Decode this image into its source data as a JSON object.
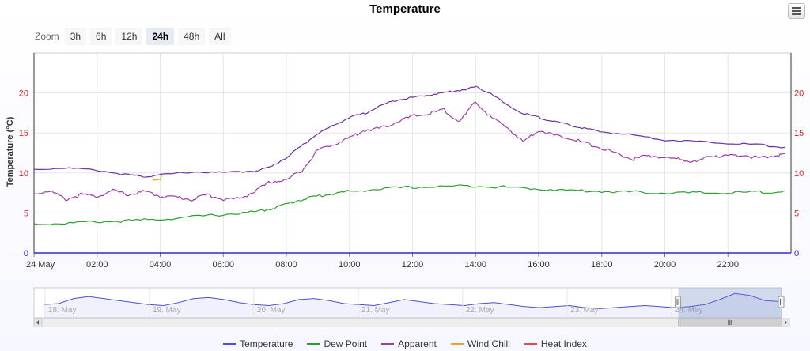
{
  "title": "Temperature",
  "menu_icon": "hamburger-menu-icon",
  "zoom": {
    "label": "Zoom",
    "buttons": [
      "3h",
      "6h",
      "12h",
      "24h",
      "48h",
      "All"
    ],
    "selected": "24h"
  },
  "chart_data": {
    "type": "line",
    "title": "Temperature",
    "ylabel": "Temperature (°C)",
    "ylim": [
      0,
      25
    ],
    "y_ticks": [
      "0",
      "5",
      "10",
      "15",
      "20"
    ],
    "x_unit": "hours",
    "x_range": [
      0,
      24
    ],
    "x_ticks": [
      {
        "x": 0,
        "label": "24 May"
      },
      {
        "x": 2,
        "label": "02:00"
      },
      {
        "x": 4,
        "label": "04:00"
      },
      {
        "x": 6,
        "label": "06:00"
      },
      {
        "x": 8,
        "label": "08:00"
      },
      {
        "x": 10,
        "label": "10:00"
      },
      {
        "x": 12,
        "label": "12:00"
      },
      {
        "x": 14,
        "label": "14:00"
      },
      {
        "x": 16,
        "label": "16:00"
      },
      {
        "x": 18,
        "label": "18:00"
      },
      {
        "x": 20,
        "label": "20:00"
      },
      {
        "x": 22,
        "label": "22:00"
      }
    ],
    "grid": true,
    "legend_position": "bottom-center",
    "series": [
      {
        "name": "Temperature",
        "color": "#7030a0",
        "points": [
          [
            0,
            10.5
          ],
          [
            1,
            10.7
          ],
          [
            2,
            10.4
          ],
          [
            3,
            9.8
          ],
          [
            3.5,
            9.6
          ],
          [
            4,
            9.8
          ],
          [
            5,
            10.2
          ],
          [
            6,
            10.1
          ],
          [
            7,
            10.3
          ],
          [
            7.5,
            10.8
          ],
          [
            8,
            12.0
          ],
          [
            8.5,
            13.5
          ],
          [
            9,
            15.0
          ],
          [
            9.5,
            16.0
          ],
          [
            10,
            17.0
          ],
          [
            10.5,
            17.5
          ],
          [
            11,
            18.5
          ],
          [
            11.5,
            19.2
          ],
          [
            12,
            19.5
          ],
          [
            12.5,
            19.8
          ],
          [
            13,
            20.1
          ],
          [
            13.5,
            20.4
          ],
          [
            14,
            20.8
          ],
          [
            14.5,
            20.0
          ],
          [
            15,
            18.5
          ],
          [
            15.5,
            17.5
          ],
          [
            16,
            17.0
          ],
          [
            16.5,
            16.5
          ],
          [
            17,
            16.0
          ],
          [
            17.5,
            15.6
          ],
          [
            18,
            15.2
          ],
          [
            19,
            14.8
          ],
          [
            20,
            14.2
          ],
          [
            21,
            14.0
          ],
          [
            22,
            13.8
          ],
          [
            23,
            13.6
          ],
          [
            23.8,
            13.2
          ]
        ]
      },
      {
        "name": "Dew Point",
        "color": "#2ca02c",
        "points": [
          [
            0,
            3.7
          ],
          [
            1,
            3.8
          ],
          [
            2,
            4.0
          ],
          [
            3,
            4.1
          ],
          [
            4,
            4.3
          ],
          [
            5,
            4.6
          ],
          [
            6,
            4.9
          ],
          [
            7,
            5.2
          ],
          [
            7.5,
            5.6
          ],
          [
            8,
            6.2
          ],
          [
            8.5,
            6.8
          ],
          [
            9,
            7.2
          ],
          [
            9.5,
            7.5
          ],
          [
            10,
            7.8
          ],
          [
            11,
            8.1
          ],
          [
            12,
            8.3
          ],
          [
            13,
            8.4
          ],
          [
            14,
            8.5
          ],
          [
            15,
            8.3
          ],
          [
            16,
            8.1
          ],
          [
            17,
            7.9
          ],
          [
            18,
            7.8
          ],
          [
            19,
            7.7
          ],
          [
            20,
            7.6
          ],
          [
            21,
            7.6
          ],
          [
            22,
            7.6
          ],
          [
            23,
            7.7
          ],
          [
            23.8,
            7.8
          ]
        ]
      },
      {
        "name": "Apparent",
        "color": "#9b3fa8",
        "points": [
          [
            0,
            7.5
          ],
          [
            0.5,
            7.9
          ],
          [
            1,
            6.8
          ],
          [
            1.5,
            7.4
          ],
          [
            2,
            7.2
          ],
          [
            2.5,
            7.9
          ],
          [
            3,
            7.4
          ],
          [
            3.5,
            7.8
          ],
          [
            4,
            7.2
          ],
          [
            4.5,
            7.1
          ],
          [
            5,
            6.8
          ],
          [
            5.5,
            7.4
          ],
          [
            6,
            6.8
          ],
          [
            6.5,
            6.9
          ],
          [
            7,
            7.8
          ],
          [
            7.5,
            9.0
          ],
          [
            8,
            9.2
          ],
          [
            8.5,
            10.5
          ],
          [
            9,
            13.0
          ],
          [
            9.5,
            13.7
          ],
          [
            10,
            14.5
          ],
          [
            10.5,
            15.5
          ],
          [
            11,
            15.7
          ],
          [
            11.5,
            16.5
          ],
          [
            12,
            17.2
          ],
          [
            12.5,
            17.5
          ],
          [
            13,
            18.0
          ],
          [
            13.5,
            16.5
          ],
          [
            14,
            19.0
          ],
          [
            14.5,
            17.0
          ],
          [
            15,
            15.8
          ],
          [
            15.5,
            14.0
          ],
          [
            16,
            15.5
          ],
          [
            16.5,
            14.8
          ],
          [
            17,
            14.5
          ],
          [
            17.5,
            13.8
          ],
          [
            18,
            13.2
          ],
          [
            18.5,
            12.5
          ],
          [
            19,
            11.8
          ],
          [
            19.5,
            12.3
          ],
          [
            20,
            12.0
          ],
          [
            20.5,
            11.8
          ],
          [
            21,
            11.5
          ],
          [
            21.5,
            12.3
          ],
          [
            22,
            12.2
          ],
          [
            22.5,
            12.4
          ],
          [
            23,
            11.9
          ],
          [
            23.5,
            12.3
          ],
          [
            23.8,
            12.4
          ]
        ]
      },
      {
        "name": "Wind Chill",
        "color": "#f0a030",
        "points": [
          [
            3.75,
            9.6
          ],
          [
            3.8,
            9.1
          ],
          [
            4.0,
            9.2
          ],
          [
            4.05,
            9.7
          ]
        ]
      },
      {
        "name": "Heat Index",
        "color": "#e8474c",
        "points": []
      }
    ]
  },
  "navigator": {
    "labels": [
      "18. May",
      "19. May",
      "20. May",
      "21. May",
      "22. May",
      "23. May",
      "24. May"
    ],
    "values": [
      10,
      11,
      16,
      18,
      16,
      14,
      12,
      10,
      9,
      12,
      16,
      17,
      15,
      12,
      10,
      9,
      11,
      15,
      16,
      14,
      11,
      10,
      9,
      12,
      15,
      13,
      11,
      10,
      9,
      11,
      12,
      10,
      8,
      7,
      8,
      9,
      7,
      6,
      7,
      8,
      9,
      8,
      7,
      8,
      10,
      15,
      21,
      19,
      14,
      13
    ],
    "selected_range": [
      0.862,
      1.0
    ]
  },
  "legend": [
    {
      "label": "Temperature",
      "color": "#4d4dd6"
    },
    {
      "label": "Dew Point",
      "color": "#2ca02c"
    },
    {
      "label": "Apparent",
      "color": "#9b3fa8"
    },
    {
      "label": "Wind Chill",
      "color": "#f0a030"
    },
    {
      "label": "Heat Index",
      "color": "#e8474c"
    }
  ]
}
